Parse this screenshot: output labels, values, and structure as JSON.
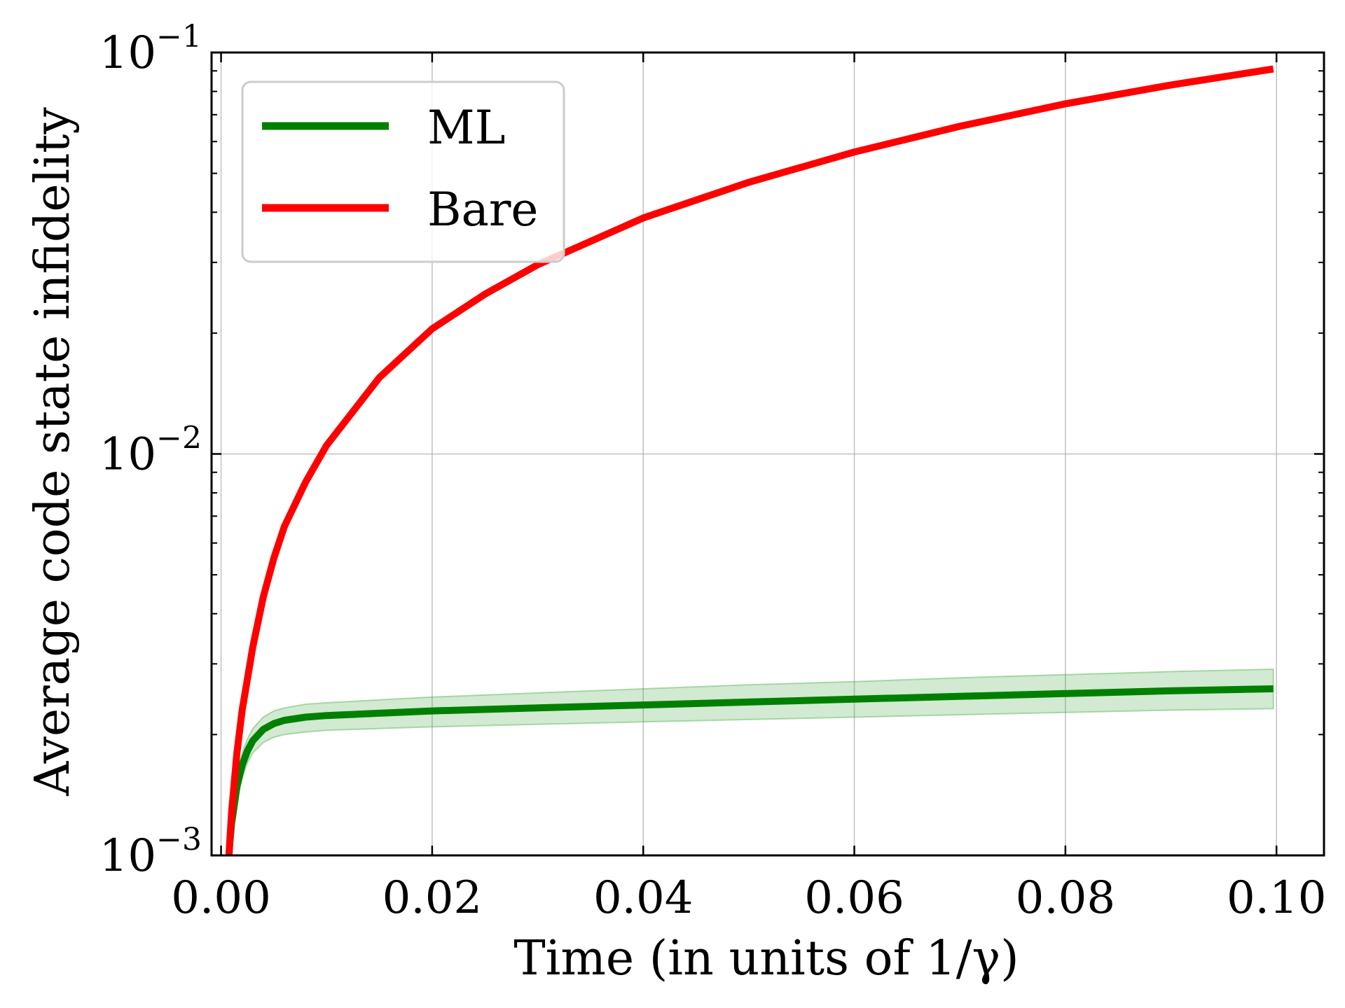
{
  "chart_data": {
    "type": "line",
    "xlabel": "Time (in units of 1/γ)",
    "ylabel": "Average code state infidelity",
    "xlim": [
      -0.0009,
      0.1045
    ],
    "ylim": [
      0.001,
      0.1
    ],
    "yscale": "log",
    "grid": true,
    "legend_placement": "top-left",
    "x_ticks": [
      {
        "value": 0.0,
        "label": "0.00"
      },
      {
        "value": 0.02,
        "label": "0.02"
      },
      {
        "value": 0.04,
        "label": "0.04"
      },
      {
        "value": 0.06,
        "label": "0.06"
      },
      {
        "value": 0.08,
        "label": "0.08"
      },
      {
        "value": 0.1,
        "label": "0.10"
      }
    ],
    "y_ticks": [
      {
        "value": 0.1,
        "base": "10",
        "exp": "−1"
      },
      {
        "value": 0.01,
        "base": "10",
        "exp": "−2"
      },
      {
        "value": 0.001,
        "base": "10",
        "exp": "−3"
      }
    ],
    "series": [
      {
        "name": "ML",
        "color": "#008000",
        "band_color": "#2ca02c",
        "x": [
          0.0006,
          0.0008,
          0.001,
          0.0015,
          0.002,
          0.0025,
          0.003,
          0.004,
          0.005,
          0.006,
          0.008,
          0.01,
          0.015,
          0.02,
          0.03,
          0.04,
          0.05,
          0.06,
          0.07,
          0.08,
          0.09,
          0.0997
        ],
        "y": [
          0.00085,
          0.00105,
          0.0012,
          0.00148,
          0.00168,
          0.00182,
          0.00193,
          0.00206,
          0.00213,
          0.00217,
          0.00221,
          0.00223,
          0.00226,
          0.00229,
          0.00233,
          0.00237,
          0.00241,
          0.00245,
          0.00249,
          0.00253,
          0.00257,
          0.0026
        ],
        "y_lower": [
          0.0008,
          0.00098,
          0.00112,
          0.00138,
          0.00157,
          0.0017,
          0.0018,
          0.00191,
          0.00197,
          0.002,
          0.00203,
          0.00205,
          0.00207,
          0.00209,
          0.00212,
          0.00215,
          0.00218,
          0.00221,
          0.00224,
          0.00227,
          0.0023,
          0.00232
        ],
        "y_upper": [
          0.0009,
          0.00112,
          0.00128,
          0.00158,
          0.0018,
          0.00195,
          0.00207,
          0.00221,
          0.00229,
          0.00233,
          0.00238,
          0.0024,
          0.00244,
          0.00248,
          0.00254,
          0.0026,
          0.00266,
          0.00271,
          0.00277,
          0.00282,
          0.00287,
          0.00291
        ]
      },
      {
        "name": "Bare",
        "color": "#ff0000",
        "x": [
          0.0006,
          0.0008,
          0.001,
          0.0015,
          0.002,
          0.003,
          0.004,
          0.005,
          0.006,
          0.008,
          0.01,
          0.015,
          0.02,
          0.025,
          0.03,
          0.04,
          0.05,
          0.06,
          0.07,
          0.08,
          0.09,
          0.0997
        ],
        "y": [
          0.00085,
          0.00105,
          0.00128,
          0.0018,
          0.0023,
          0.0033,
          0.0044,
          0.0055,
          0.0066,
          0.0085,
          0.0105,
          0.0155,
          0.0205,
          0.025,
          0.0296,
          0.0387,
          0.0475,
          0.0565,
          0.0655,
          0.0745,
          0.083,
          0.091
        ]
      }
    ]
  }
}
